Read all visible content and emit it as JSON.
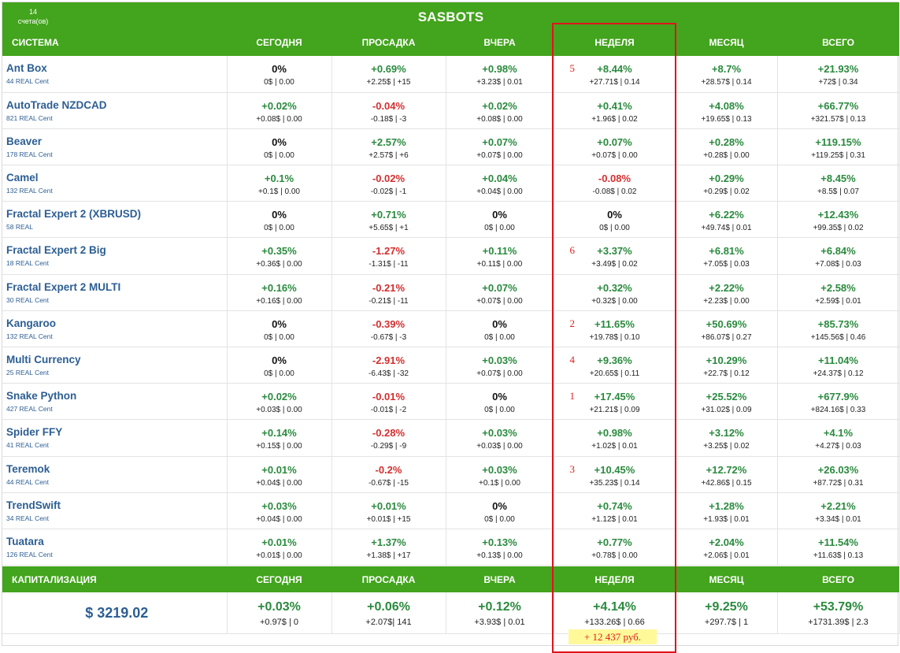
{
  "header": {
    "title": "SASBOTS",
    "accounts_count": "14",
    "accounts_label": "счета(ов)",
    "columns": [
      "СИСТЕМА",
      "СЕГОДНЯ",
      "ПРОСАДКА",
      "ВЧЕРА",
      "НЕДЕЛЯ",
      "МЕСЯЦ",
      "ВСЕГО"
    ]
  },
  "colors": {
    "header_bg": "#43a41d",
    "positive": "#2a8a3e",
    "negative": "#d32f2f",
    "link": "#2c5e93",
    "annotation": "#e0141c",
    "highlight": "#fff99a"
  },
  "rows": [
    {
      "name": "Ant Box",
      "sub": "44 REAL Cent",
      "rank": "5",
      "cells": [
        [
          "0%",
          "0$ | 0.00",
          "zero"
        ],
        [
          "+0.69%",
          "+2.25$ | +15",
          "pos"
        ],
        [
          "+0.98%",
          "+3.23$ | 0.01",
          "pos"
        ],
        [
          "+8.44%",
          "+27.71$ | 0.14",
          "pos"
        ],
        [
          "+8.7%",
          "+28.57$ | 0.14",
          "pos"
        ],
        [
          "+21.93%",
          "+72$ | 0.34",
          "pos"
        ]
      ]
    },
    {
      "name": "AutoTrade NZDCAD",
      "sub": "821 REAL Cent",
      "rank": "",
      "cells": [
        [
          "+0.02%",
          "+0.08$ | 0.00",
          "pos"
        ],
        [
          "-0.04%",
          "-0.18$ | -3",
          "neg"
        ],
        [
          "+0.02%",
          "+0.08$ | 0.00",
          "pos"
        ],
        [
          "+0.41%",
          "+1.96$ | 0.02",
          "pos"
        ],
        [
          "+4.08%",
          "+19.65$ | 0.13",
          "pos"
        ],
        [
          "+66.77%",
          "+321.57$ | 0.13",
          "pos"
        ]
      ]
    },
    {
      "name": "Beaver",
      "sub": "178 REAL Cent",
      "rank": "",
      "cells": [
        [
          "0%",
          "0$ | 0.00",
          "zero"
        ],
        [
          "+2.57%",
          "+2.57$ | +6",
          "pos"
        ],
        [
          "+0.07%",
          "+0.07$ | 0.00",
          "pos"
        ],
        [
          "+0.07%",
          "+0.07$ | 0.00",
          "pos"
        ],
        [
          "+0.28%",
          "+0.28$ | 0.00",
          "pos"
        ],
        [
          "+119.15%",
          "+119.25$ | 0.31",
          "pos"
        ]
      ]
    },
    {
      "name": "Camel",
      "sub": "132 REAL Cent",
      "rank": "",
      "cells": [
        [
          "+0.1%",
          "+0.1$ | 0.00",
          "pos"
        ],
        [
          "-0.02%",
          "-0.02$ | -1",
          "neg"
        ],
        [
          "+0.04%",
          "+0.04$ | 0.00",
          "pos"
        ],
        [
          "-0.08%",
          "-0.08$ | 0.02",
          "neg"
        ],
        [
          "+0.29%",
          "+0.29$ | 0.02",
          "pos"
        ],
        [
          "+8.45%",
          "+8.5$ | 0.07",
          "pos"
        ]
      ]
    },
    {
      "name": "Fractal Expert 2 (XBRUSD)",
      "sub": "58 REAL",
      "rank": "",
      "cells": [
        [
          "0%",
          "0$ | 0.00",
          "zero"
        ],
        [
          "+0.71%",
          "+5.65$ | +1",
          "pos"
        ],
        [
          "0%",
          "0$ | 0.00",
          "zero"
        ],
        [
          "0%",
          "0$ | 0.00",
          "zero"
        ],
        [
          "+6.22%",
          "+49.74$ | 0.01",
          "pos"
        ],
        [
          "+12.43%",
          "+99.35$ | 0.02",
          "pos"
        ]
      ]
    },
    {
      "name": "Fractal Expert 2 Big",
      "sub": "18 REAL Cent",
      "rank": "6",
      "cells": [
        [
          "+0.35%",
          "+0.36$ | 0.00",
          "pos"
        ],
        [
          "-1.27%",
          "-1.31$ | -11",
          "neg"
        ],
        [
          "+0.11%",
          "+0.11$ | 0.00",
          "pos"
        ],
        [
          "+3.37%",
          "+3.49$ | 0.02",
          "pos"
        ],
        [
          "+6.81%",
          "+7.05$ | 0.03",
          "pos"
        ],
        [
          "+6.84%",
          "+7.08$ | 0.03",
          "pos"
        ]
      ]
    },
    {
      "name": "Fractal Expert 2 MULTI",
      "sub": "30 REAL Cent",
      "rank": "",
      "cells": [
        [
          "+0.16%",
          "+0.16$ | 0.00",
          "pos"
        ],
        [
          "-0.21%",
          "-0.21$ | -11",
          "neg"
        ],
        [
          "+0.07%",
          "+0.07$ | 0.00",
          "pos"
        ],
        [
          "+0.32%",
          "+0.32$ | 0.00",
          "pos"
        ],
        [
          "+2.22%",
          "+2.23$ | 0.00",
          "pos"
        ],
        [
          "+2.58%",
          "+2.59$ | 0.01",
          "pos"
        ]
      ]
    },
    {
      "name": "Kangaroo",
      "sub": "132 REAL Cent",
      "rank": "2",
      "cells": [
        [
          "0%",
          "0$ | 0.00",
          "zero"
        ],
        [
          "-0.39%",
          "-0.67$ | -3",
          "neg"
        ],
        [
          "0%",
          "0$ | 0.00",
          "zero"
        ],
        [
          "+11.65%",
          "+19.78$ | 0.10",
          "pos"
        ],
        [
          "+50.69%",
          "+86.07$ | 0.27",
          "pos"
        ],
        [
          "+85.73%",
          "+145.56$ | 0.46",
          "pos"
        ]
      ]
    },
    {
      "name": "Multi Currency",
      "sub": "25 REAL Cent",
      "rank": "4",
      "cells": [
        [
          "0%",
          "0$ | 0.00",
          "zero"
        ],
        [
          "-2.91%",
          "-6.43$ | -32",
          "neg"
        ],
        [
          "+0.03%",
          "+0.07$ | 0.00",
          "pos"
        ],
        [
          "+9.36%",
          "+20.65$ | 0.11",
          "pos"
        ],
        [
          "+10.29%",
          "+22.7$ | 0.12",
          "pos"
        ],
        [
          "+11.04%",
          "+24.37$ | 0.12",
          "pos"
        ]
      ]
    },
    {
      "name": "Snake Python",
      "sub": "427 REAL Cent",
      "rank": "1",
      "cells": [
        [
          "+0.02%",
          "+0.03$ | 0.00",
          "pos"
        ],
        [
          "-0.01%",
          "-0.01$ | -2",
          "neg"
        ],
        [
          "0%",
          "0$ | 0.00",
          "zero"
        ],
        [
          "+17.45%",
          "+21.21$ | 0.09",
          "pos"
        ],
        [
          "+25.52%",
          "+31.02$ | 0.09",
          "pos"
        ],
        [
          "+677.9%",
          "+824.16$ | 0.33",
          "pos"
        ]
      ]
    },
    {
      "name": "Spider FFY",
      "sub": "41 REAL Cent",
      "rank": "",
      "cells": [
        [
          "+0.14%",
          "+0.15$ | 0.00",
          "pos"
        ],
        [
          "-0.28%",
          "-0.29$ | -9",
          "neg"
        ],
        [
          "+0.03%",
          "+0.03$ | 0.00",
          "pos"
        ],
        [
          "+0.98%",
          "+1.02$ | 0.01",
          "pos"
        ],
        [
          "+3.12%",
          "+3.25$ | 0.02",
          "pos"
        ],
        [
          "+4.1%",
          "+4.27$ | 0.03",
          "pos"
        ]
      ]
    },
    {
      "name": "Teremok",
      "sub": "44 REAL Cent",
      "rank": "3",
      "cells": [
        [
          "+0.01%",
          "+0.04$ | 0.00",
          "pos"
        ],
        [
          "-0.2%",
          "-0.67$ | -15",
          "neg"
        ],
        [
          "+0.03%",
          "+0.1$ | 0.00",
          "pos"
        ],
        [
          "+10.45%",
          "+35.23$ | 0.14",
          "pos"
        ],
        [
          "+12.72%",
          "+42.86$ | 0.15",
          "pos"
        ],
        [
          "+26.03%",
          "+87.72$ | 0.31",
          "pos"
        ]
      ]
    },
    {
      "name": "TrendSwift",
      "sub": "34 REAL Cent",
      "rank": "",
      "cells": [
        [
          "+0.03%",
          "+0.04$ | 0.00",
          "pos"
        ],
        [
          "+0.01%",
          "+0.01$ | +15",
          "pos"
        ],
        [
          "0%",
          "0$ | 0.00",
          "zero"
        ],
        [
          "+0.74%",
          "+1.12$ | 0.01",
          "pos"
        ],
        [
          "+1.28%",
          "+1.93$ | 0.01",
          "pos"
        ],
        [
          "+2.21%",
          "+3.34$ | 0.01",
          "pos"
        ]
      ]
    },
    {
      "name": "Tuatara",
      "sub": "126 REAL Cent",
      "rank": "",
      "cells": [
        [
          "+0.01%",
          "+0.01$ | 0.00",
          "pos"
        ],
        [
          "+1.37%",
          "+1.38$ | +17",
          "pos"
        ],
        [
          "+0.13%",
          "+0.13$ | 0.00",
          "pos"
        ],
        [
          "+0.77%",
          "+0.78$ | 0.00",
          "pos"
        ],
        [
          "+2.04%",
          "+2.06$ | 0.01",
          "pos"
        ],
        [
          "+11.54%",
          "+11.63$ | 0.13",
          "pos"
        ]
      ]
    }
  ],
  "capitalization": {
    "label": "КАПИТАЛИЗАЦИЯ",
    "columns": [
      "СЕГОДНЯ",
      "ПРОСАДКА",
      "ВЧЕРА",
      "НЕДЕЛЯ",
      "МЕСЯЦ",
      "ВСЕГО"
    ],
    "total": "$ 3219.02",
    "cells": [
      [
        "+0.03%",
        "+0.97$ | 0"
      ],
      [
        "+0.06%",
        "+2.07$| 141"
      ],
      [
        "+0.12%",
        "+3.93$ | 0.01"
      ],
      [
        "+4.14%",
        "+133.26$ | 0.66"
      ],
      [
        "+9.25%",
        "+297.7$ | 1"
      ],
      [
        "+53.79%",
        "+1731.39$ | 2.3"
      ]
    ]
  },
  "annotation": {
    "rub_note": "+ 12 437 руб."
  }
}
